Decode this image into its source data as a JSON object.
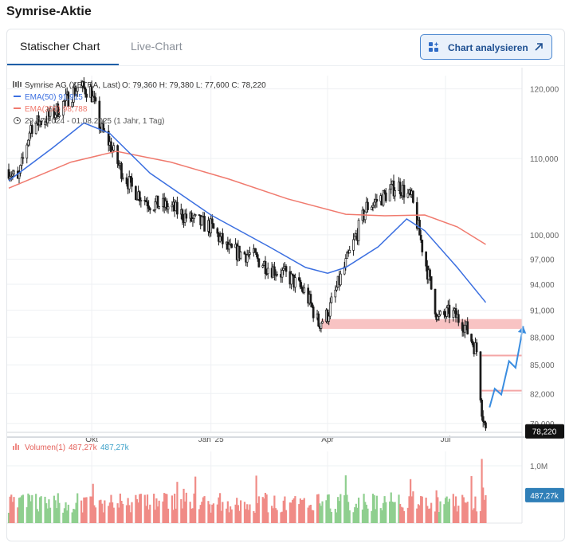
{
  "page": {
    "title": "Symrise-Aktie"
  },
  "tabs": [
    {
      "label": "Statischer Chart",
      "active": true
    },
    {
      "label": "Live-Chart",
      "active": false
    }
  ],
  "analyze_button": {
    "label": "Chart analysieren",
    "icon_left": "sparkle-grid-icon",
    "icon_right": "arrow-up-right-icon"
  },
  "legend": {
    "instrument": "Symrise AG (XETRA, Last)",
    "ohlc": "O: 79,360  H: 79,380  L: 77,600  C: 78,220",
    "ema50": "EMA(50) 91,915",
    "ema200": "EMA(200) 98,788",
    "range": "29.07.2024 - 01.08.2025 (1 Jahr, 1 Tag)",
    "volume_label": "Volumen(1)",
    "volume_v1": "487,27k",
    "volume_v2": "487,27k"
  },
  "colors": {
    "up": "#1a1a1a",
    "down": "#1a1a1a",
    "ema50": "#3b6fe0",
    "ema200": "#f07a6e",
    "zone": "#f7b8b8",
    "arrow": "#3a8de0",
    "vol_up": "#8fcf8f",
    "vol_down": "#f08b86",
    "last_price_bg": "#111111",
    "last_vol_bg": "#2f7fb8"
  },
  "chart_data": {
    "type": "candlestick",
    "instrument": "Symrise AG (XETRA, Last)",
    "y_ticks": [
      "120,000",
      "110,000",
      "100,000",
      "97,000",
      "94,000",
      "91,000",
      "88,000",
      "85,000",
      "82,000",
      "79,000"
    ],
    "ylim": [
      78.2,
      122.0
    ],
    "y_scale": "log",
    "x_ticks": [
      "Okt",
      "Jan '25",
      "Apr",
      "Jul"
    ],
    "x_range": [
      "2024-07-29",
      "2025-08-01"
    ],
    "last_price": "78,220",
    "close_path": [
      [
        "2024-07-29",
        108.5
      ],
      [
        "2024-08-05",
        106.8
      ],
      [
        "2024-08-15",
        114.5
      ],
      [
        "2024-09-01",
        116.2
      ],
      [
        "2024-09-10",
        118.0
      ],
      [
        "2024-09-20",
        120.2
      ],
      [
        "2024-09-30",
        119.8
      ],
      [
        "2024-10-08",
        114.2
      ],
      [
        "2024-10-15",
        112.0
      ],
      [
        "2024-10-22",
        109.0
      ],
      [
        "2024-11-01",
        106.0
      ],
      [
        "2024-11-15",
        104.0
      ],
      [
        "2024-12-01",
        103.5
      ],
      [
        "2024-12-15",
        102.0
      ],
      [
        "2025-01-01",
        101.0
      ],
      [
        "2025-01-15",
        98.0
      ],
      [
        "2025-02-01",
        97.5
      ],
      [
        "2025-02-15",
        96.0
      ],
      [
        "2025-03-01",
        95.0
      ],
      [
        "2025-03-15",
        93.0
      ],
      [
        "2025-03-25",
        89.5
      ],
      [
        "2025-04-01",
        90.5
      ],
      [
        "2025-04-08",
        93.5
      ],
      [
        "2025-04-20",
        98.5
      ],
      [
        "2025-05-01",
        103.5
      ],
      [
        "2025-05-15",
        105.0
      ],
      [
        "2025-05-25",
        106.5
      ],
      [
        "2025-06-05",
        104.5
      ],
      [
        "2025-06-15",
        97.0
      ],
      [
        "2025-06-25",
        90.0
      ],
      [
        "2025-07-05",
        90.8
      ],
      [
        "2025-07-15",
        89.5
      ],
      [
        "2025-07-25",
        86.5
      ],
      [
        "2025-07-29",
        80.5
      ],
      [
        "2025-08-01",
        78.2
      ]
    ],
    "ema50": [
      [
        "2024-07-29",
        107.0
      ],
      [
        "2024-09-01",
        111.5
      ],
      [
        "2024-09-25",
        115.0
      ],
      [
        "2024-10-15",
        113.5
      ],
      [
        "2024-11-15",
        108.0
      ],
      [
        "2025-01-01",
        102.5
      ],
      [
        "2025-02-15",
        98.5
      ],
      [
        "2025-03-15",
        96.0
      ],
      [
        "2025-04-01",
        95.3
      ],
      [
        "2025-04-15",
        96.0
      ],
      [
        "2025-05-10",
        98.5
      ],
      [
        "2025-06-01",
        102.0
      ],
      [
        "2025-06-15",
        100.5
      ],
      [
        "2025-07-10",
        96.0
      ],
      [
        "2025-08-01",
        91.9
      ]
    ],
    "ema200": [
      [
        "2024-07-29",
        106.0
      ],
      [
        "2024-09-15",
        109.5
      ],
      [
        "2024-10-20",
        111.0
      ],
      [
        "2024-12-01",
        109.5
      ],
      [
        "2025-01-15",
        107.2
      ],
      [
        "2025-03-01",
        104.6
      ],
      [
        "2025-04-15",
        102.6
      ],
      [
        "2025-05-15",
        102.4
      ],
      [
        "2025-06-15",
        102.5
      ],
      [
        "2025-07-10",
        101.0
      ],
      [
        "2025-08-01",
        98.8
      ]
    ],
    "zone": {
      "from": "2025-03-27",
      "y_low": 88.9,
      "y_high": 90.0
    },
    "levels": [
      {
        "from": "2025-07-29",
        "to": "2025-08-29",
        "y": 86.0
      },
      {
        "from": "2025-07-29",
        "to": "2025-08-29",
        "y": 82.3
      }
    ],
    "projection": [
      [
        "2025-08-04",
        80.6
      ],
      [
        "2025-08-08",
        82.5
      ],
      [
        "2025-08-13",
        81.9
      ],
      [
        "2025-08-19",
        85.4
      ],
      [
        "2025-08-24",
        84.7
      ],
      [
        "2025-08-30",
        89.2
      ]
    ],
    "volume": {
      "label": "Volumen(1)",
      "ticks": [
        "1,0M"
      ],
      "ylim": [
        0,
        1.25
      ],
      "last": "487,27k"
    }
  }
}
